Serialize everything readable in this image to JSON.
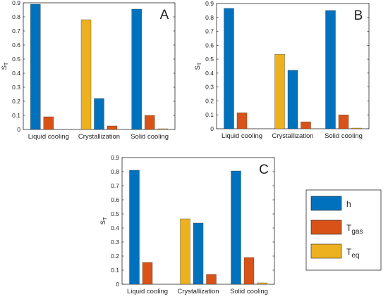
{
  "chart_data": [
    {
      "type": "bar",
      "panel_label": "A",
      "categories": [
        "Liquid cooling",
        "Crystallization",
        "Solid cooling"
      ],
      "ylabel": "S",
      "ylabel_sub": "T",
      "ylim": [
        0,
        0.9
      ],
      "yticks": [
        "0",
        "0.1",
        "0.2",
        "0.3",
        "0.4",
        "0.5",
        "0.6",
        "0.7",
        "0.8",
        "0.9"
      ],
      "series": [
        {
          "key": "h",
          "values": [
            0.89,
            0.22,
            0.855
          ]
        },
        {
          "key": "T_gas",
          "values": [
            0.09,
            0.025,
            0.1
          ]
        },
        {
          "key": "T_eq",
          "values": [
            null,
            0.78,
            0.005
          ]
        }
      ]
    },
    {
      "type": "bar",
      "panel_label": "B",
      "categories": [
        "Liquid cooling",
        "Crystallization",
        "Solid cooling"
      ],
      "ylabel": "S",
      "ylabel_sub": "T",
      "ylim": [
        0,
        0.9
      ],
      "yticks": [
        "0",
        "0.1",
        "0.2",
        "0.3",
        "0.4",
        "0.5",
        "0.6",
        "0.7",
        "0.8",
        "0.9"
      ],
      "series": [
        {
          "key": "h",
          "values": [
            0.865,
            0.42,
            0.85
          ]
        },
        {
          "key": "T_gas",
          "values": [
            0.115,
            0.05,
            0.1
          ]
        },
        {
          "key": "T_eq",
          "values": [
            null,
            0.535,
            0.005
          ]
        }
      ]
    },
    {
      "type": "bar",
      "panel_label": "C",
      "categories": [
        "Liquid cooling",
        "Crystallization",
        "Solid cooling"
      ],
      "ylabel": "S",
      "ylabel_sub": "T",
      "ylim": [
        0,
        0.9
      ],
      "yticks": [
        "0",
        "0.1",
        "0.2",
        "0.3",
        "0.4",
        "0.5",
        "0.6",
        "0.7",
        "0.8",
        "0.9"
      ],
      "series": [
        {
          "key": "h",
          "values": [
            0.81,
            0.435,
            0.805
          ]
        },
        {
          "key": "T_gas",
          "values": [
            0.155,
            0.07,
            0.19
          ]
        },
        {
          "key": "T_eq",
          "values": [
            null,
            0.465,
            0.01
          ]
        }
      ]
    }
  ],
  "legend": {
    "placement": "right of panel C",
    "entries": [
      {
        "key": "h",
        "main": "h",
        "sub": "",
        "color": "#0072BD"
      },
      {
        "key": "T_gas",
        "main": "T",
        "sub": "gas",
        "color": "#D95319"
      },
      {
        "key": "T_eq",
        "main": "T",
        "sub": "eq",
        "color": "#EDB120"
      }
    ]
  },
  "colors": {
    "h": "#0072BD",
    "T_gas": "#D95319",
    "T_eq": "#EDB120",
    "axis": "#262626"
  }
}
